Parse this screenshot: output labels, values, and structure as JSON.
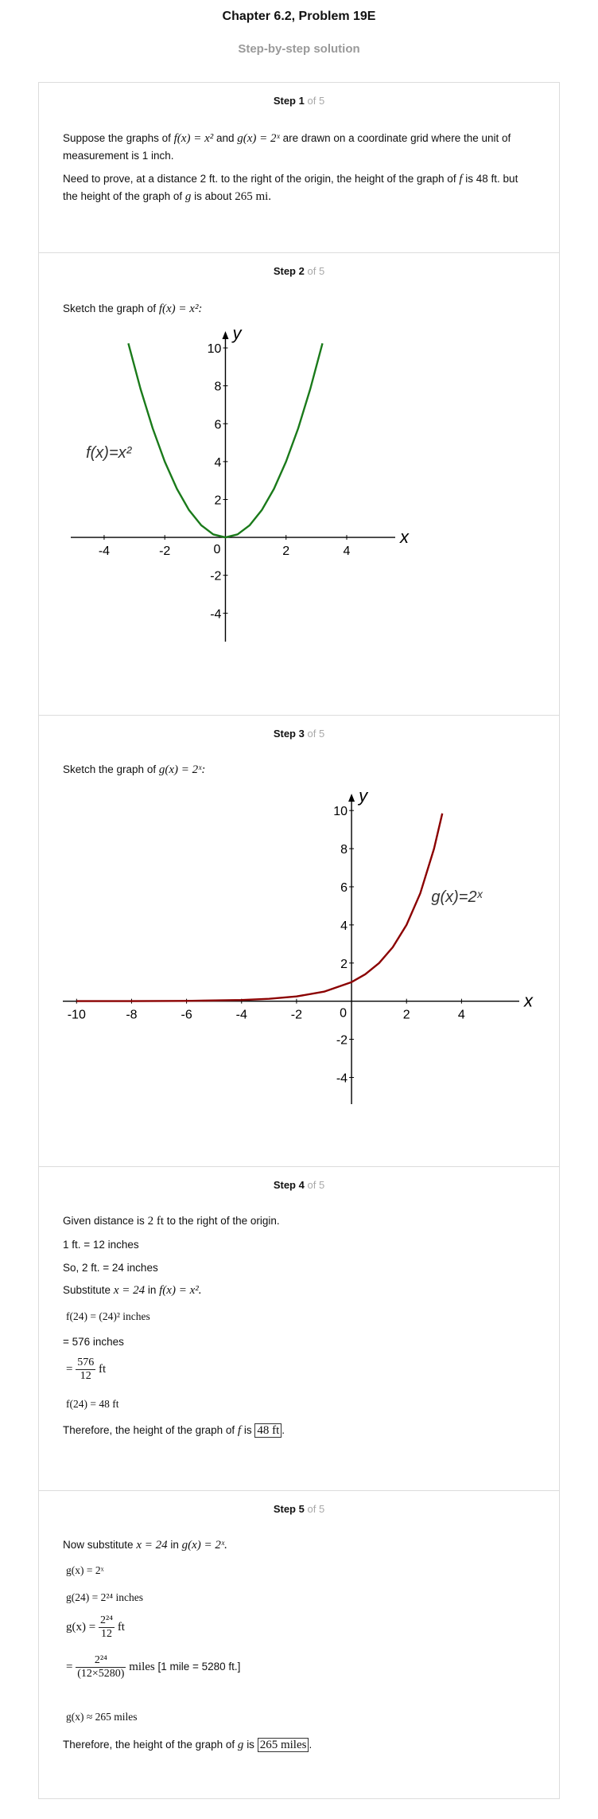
{
  "header": {
    "title": "Chapter 6.2, Problem 19E",
    "subtitle": "Step-by-step solution"
  },
  "step_word": "Step",
  "steps": [
    {
      "number": "1",
      "of": "of 5",
      "p1_a": "Suppose the graphs of",
      "p1_f": "f(x) = x²",
      "p1_and": "and",
      "p1_g": "g(x) = 2ˣ",
      "p1_b": "are drawn on a coordinate grid where the unit of measurement is 1 inch.",
      "p2_a": "Need to prove, at a distance 2 ft. to the right of the origin, the height of the graph of",
      "p2_f": "f",
      "p2_b": "is 48 ft. but the height of the graph of",
      "p2_g": "g",
      "p2_c": "is about",
      "p2_val": "265 mi."
    },
    {
      "number": "2",
      "of": "of 5",
      "text": "Sketch the graph of",
      "func": "f(x) = x²:"
    },
    {
      "number": "3",
      "of": "of 5",
      "text": "Sketch the graph of",
      "func": "g(x) = 2ˣ:"
    },
    {
      "number": "4",
      "of": "of 5",
      "l1_a": "Given distance is",
      "l1_m": "2 ft",
      "l1_b": "to the right of the origin.",
      "l2": "1 ft. = 12 inches",
      "l3": "So, 2 ft. = 24 inches",
      "l4_a": "Substitute",
      "l4_m1": "x = 24",
      "l4_in": "in",
      "l4_m2": "f(x) = x².",
      "l5": "f(24) = (24)² inches",
      "l6": "= 576 inches",
      "l7_eq": "=",
      "l7_num": "576",
      "l7_den": "12",
      "l7_unit": "ft",
      "l8": "f(24) = 48 ft",
      "l9_a": "Therefore, the height of the graph of",
      "l9_f": "f",
      "l9_is": "is",
      "l9_box": "48 ft",
      "l9_dot": "."
    },
    {
      "number": "5",
      "of": "of 5",
      "l1_a": "Now substitute",
      "l1_m1": "x = 24",
      "l1_in": "in",
      "l1_m2": "g(x) = 2ˣ.",
      "l2": "g(x) = 2ˣ",
      "l3": "g(24) = 2²⁴ inches",
      "l4_lhs": "g(x) =",
      "l4_num": "2²⁴",
      "l4_den": "12",
      "l4_unit": "ft",
      "l5_eq": "=",
      "l5_num": "2²⁴",
      "l5_den": "(12×5280)",
      "l5_unit": "miles",
      "l5_note": "[1 mile = 5280 ft.]",
      "l6": "g(x) ≈ 265 miles",
      "l7_a": "Therefore, the height of the graph of",
      "l7_g": "g",
      "l7_is": "is",
      "l7_box": "265 miles",
      "l7_dot": "."
    }
  ],
  "chart_data": [
    {
      "type": "line",
      "function": "f(x) = x^2",
      "series": [
        {
          "name": "f(x)=x²",
          "color": "#1a7a1a",
          "x": [
            -3.2,
            -2.8,
            -2.4,
            -2,
            -1.6,
            -1.2,
            -0.8,
            -0.4,
            0,
            0.4,
            0.8,
            1.2,
            1.6,
            2,
            2.4,
            2.8,
            3.2
          ],
          "y": [
            10.24,
            7.84,
            5.76,
            4,
            2.56,
            1.44,
            0.64,
            0.16,
            0,
            0.16,
            0.64,
            1.44,
            2.56,
            4,
            5.76,
            7.84,
            10.24
          ]
        }
      ],
      "curve_label": "f(x)=x²",
      "xlabel": "x",
      "ylabel": "y",
      "xlim": [
        -5.1,
        5.6
      ],
      "ylim": [
        -5.5,
        10.8
      ],
      "xticks": [
        -4,
        -2,
        2,
        4
      ],
      "yticks": [
        -4,
        -2,
        2,
        4,
        6,
        8,
        10
      ],
      "origin_label": "0",
      "grid": false
    },
    {
      "type": "line",
      "function": "g(x) = 2^x",
      "series": [
        {
          "name": "g(x)=2ˣ",
          "color": "#8b0000",
          "x": [
            -10,
            -8,
            -6,
            -4,
            -3,
            -2,
            -1,
            0,
            0.5,
            1,
            1.5,
            2,
            2.5,
            3,
            3.3
          ],
          "y": [
            0.001,
            0.004,
            0.016,
            0.0625,
            0.125,
            0.25,
            0.5,
            1,
            1.414,
            2,
            2.828,
            4,
            5.657,
            8,
            9.849
          ]
        }
      ],
      "curve_label": "g(x)=2ˣ",
      "xlabel": "x",
      "ylabel": "y",
      "xlim": [
        -10.5,
        6.1
      ],
      "ylim": [
        -5.4,
        10.8
      ],
      "xticks": [
        -10,
        -8,
        -6,
        -4,
        -2,
        2,
        4
      ],
      "yticks": [
        -4,
        -2,
        2,
        4,
        6,
        8,
        10
      ],
      "origin_label": "0",
      "grid": false
    }
  ]
}
